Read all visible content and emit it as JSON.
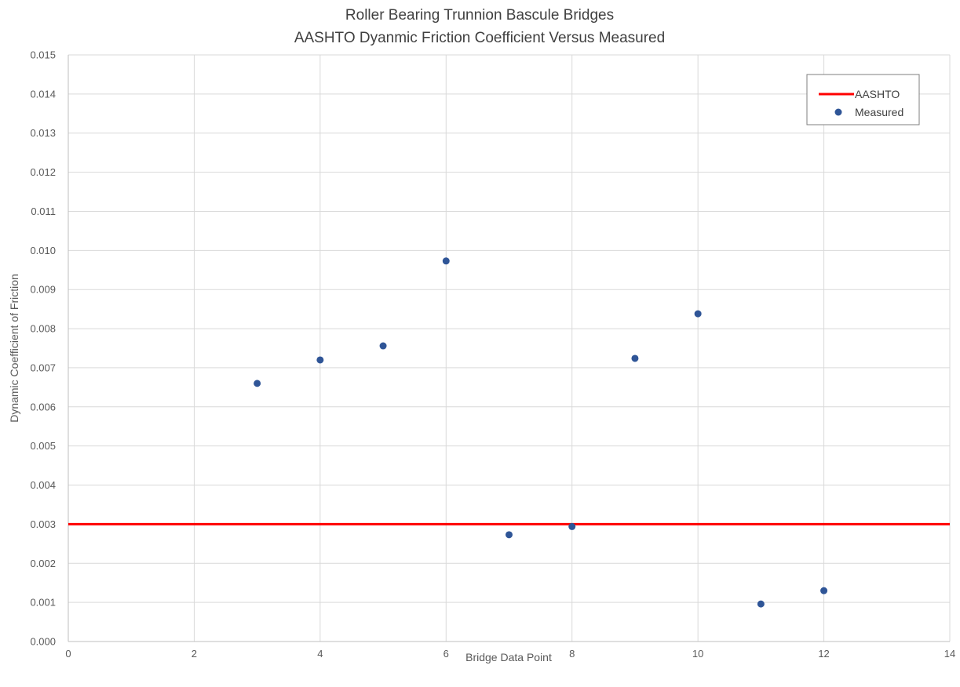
{
  "chart_data": {
    "type": "scatter",
    "title": "Roller Bearing Trunnion Bascule Bridges",
    "subtitle": "AASHTO Dyanmic Friction Coefficient Versus Measured",
    "xlabel": "Bridge Data Point",
    "ylabel": "Dynamic Coefficient of Friction",
    "xlim": [
      0,
      14
    ],
    "ylim": [
      0,
      0.015
    ],
    "x_ticks": [
      "0",
      "2",
      "4",
      "6",
      "8",
      "10",
      "12",
      "14"
    ],
    "y_ticks": [
      "0.000",
      "0.001",
      "0.002",
      "0.003",
      "0.004",
      "0.005",
      "0.006",
      "0.007",
      "0.008",
      "0.009",
      "0.010",
      "0.011",
      "0.012",
      "0.013",
      "0.014",
      "0.015"
    ],
    "grid": true,
    "legend_position": "top-right",
    "series": [
      {
        "name": "AASHTO",
        "kind": "line",
        "color": "#ff0000",
        "x": [
          0,
          14
        ],
        "y": [
          0.003,
          0.003
        ]
      },
      {
        "name": "Measured",
        "kind": "scatter",
        "color": "#2f5597",
        "x": [
          3,
          4,
          5,
          6,
          7,
          8,
          9,
          10,
          11,
          12
        ],
        "y": [
          0.0066,
          0.0072,
          0.00756,
          0.00973,
          0.00273,
          0.00294,
          0.00724,
          0.00838,
          0.00096,
          0.0013
        ]
      }
    ]
  }
}
